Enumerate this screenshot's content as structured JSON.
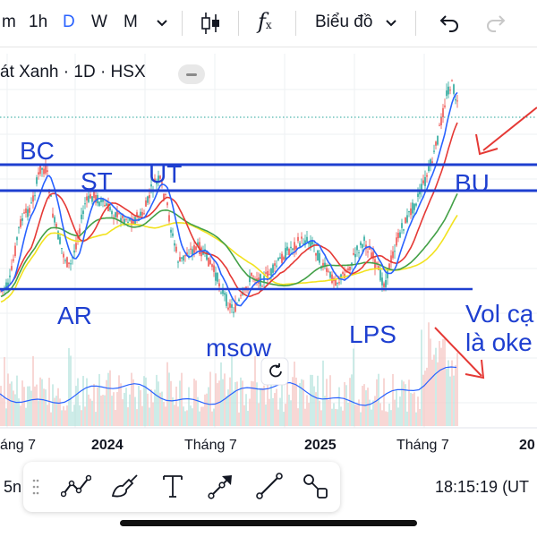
{
  "toolbar": {
    "intervals": [
      "m",
      "1h",
      "D",
      "W",
      "M"
    ],
    "active_interval": "D",
    "formula_label": "f",
    "formula_sub": "x",
    "chart_type_label": "Biểu đồ"
  },
  "symbol_legend": "át Xanh · 1D · HSX",
  "chart_data": {
    "type": "candlestick",
    "x_ticks": [
      "áng 7",
      "2024",
      "Tháng 7",
      "2025",
      "Tháng 7",
      "20"
    ],
    "bold_x_ticks": [
      "2024",
      "2025",
      "20"
    ],
    "price_levels": [
      {
        "name": "upper_resistance",
        "y_label": "BC"
      },
      {
        "name": "lower_resistance",
        "y_label": "BU"
      },
      {
        "name": "support",
        "y_label": "AR"
      }
    ],
    "annotations": [
      "BC",
      "ST",
      "UT",
      "AR",
      "msow",
      "LPS",
      "BU",
      "Vol cạ",
      "là oke"
    ],
    "series": [
      {
        "name": "price",
        "color": "#2a9d8f"
      },
      {
        "name": "ma_fast",
        "color": "#2962ff"
      },
      {
        "name": "ma_mid",
        "color": "#e53935"
      },
      {
        "name": "ma_slow",
        "color": "#43a047"
      },
      {
        "name": "ma_long",
        "color": "#f2e21f"
      },
      {
        "name": "volume",
        "color": "#2962ff"
      }
    ],
    "annotation_color": "#1e3fd0",
    "arrow_color": "#e53935",
    "grid": true
  },
  "bottom": {
    "time_label": "18:15:19 (UT",
    "left_label": "5n"
  }
}
